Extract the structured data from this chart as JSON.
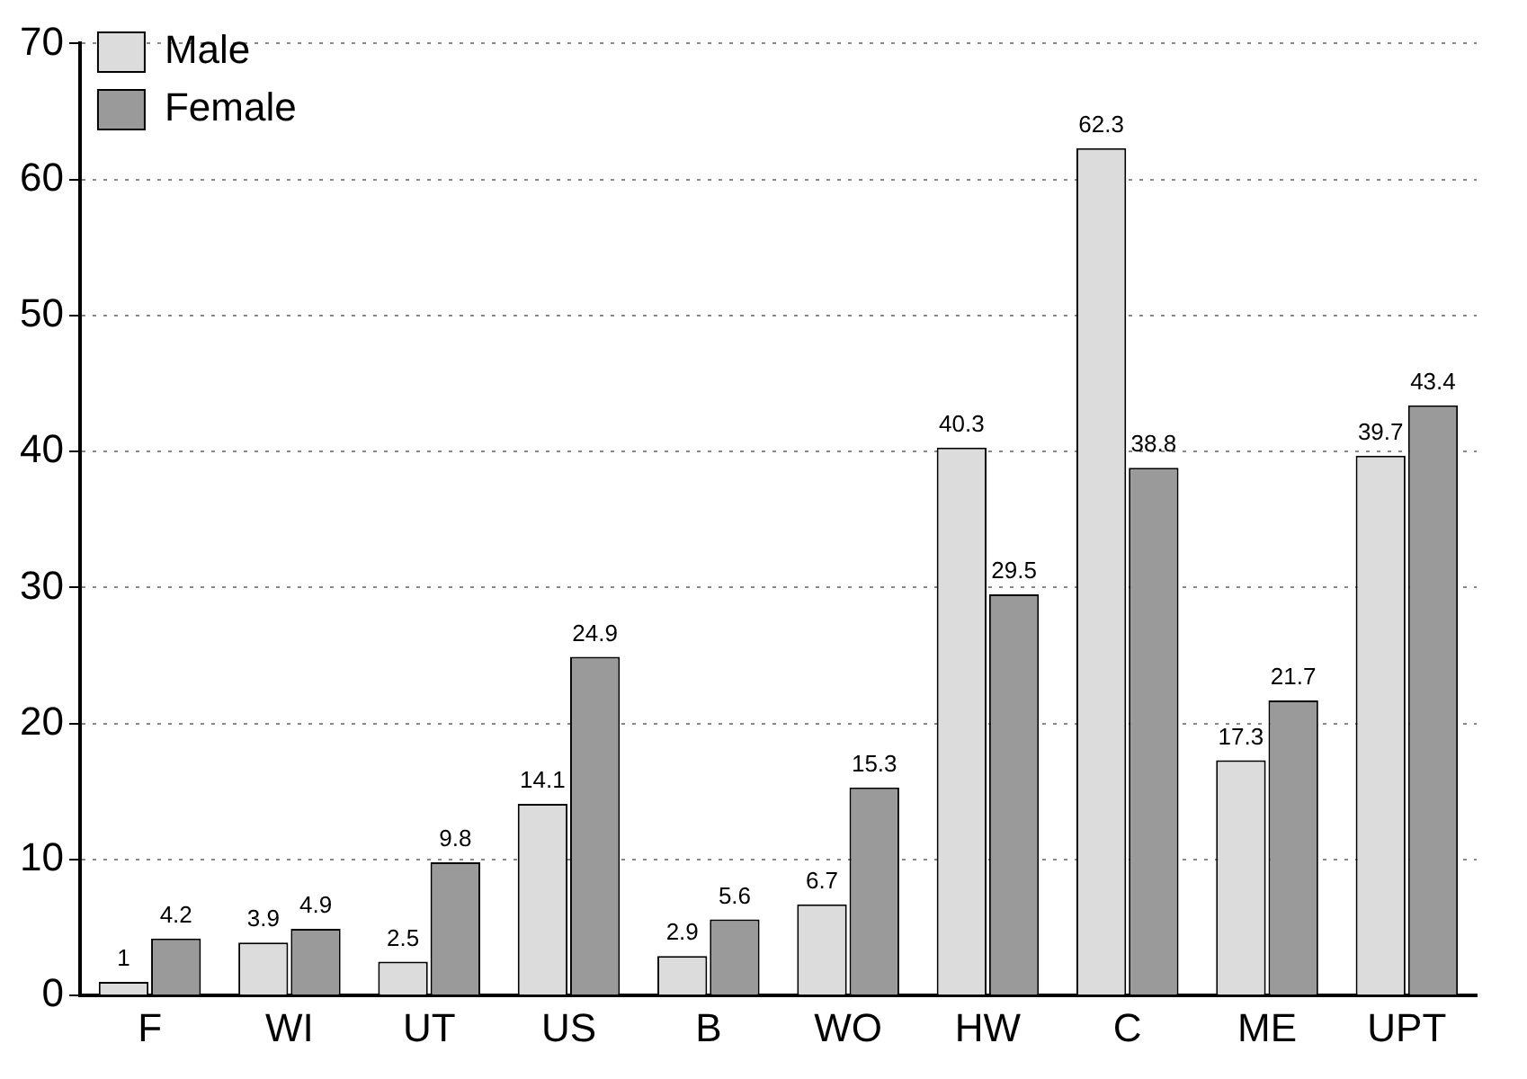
{
  "chart_data": {
    "type": "bar",
    "categories": [
      "F",
      "WI",
      "UT",
      "US",
      "B",
      "WO",
      "HW",
      "C",
      "ME",
      "UPT"
    ],
    "series": [
      {
        "name": "Male",
        "color": "#dcdcdc",
        "values": [
          1,
          3.9,
          2.5,
          14.1,
          2.9,
          6.7,
          40.3,
          62.3,
          17.3,
          39.7
        ]
      },
      {
        "name": "Female",
        "color": "#9a9a9a",
        "values": [
          4.2,
          4.9,
          9.8,
          24.9,
          5.6,
          15.3,
          29.5,
          38.8,
          21.7,
          43.4
        ]
      }
    ],
    "ylim": [
      0,
      70
    ],
    "yticks": [
      0,
      10,
      20,
      30,
      40,
      50,
      60,
      70
    ],
    "grid": "y",
    "legend": "top left",
    "data_labels": true
  }
}
